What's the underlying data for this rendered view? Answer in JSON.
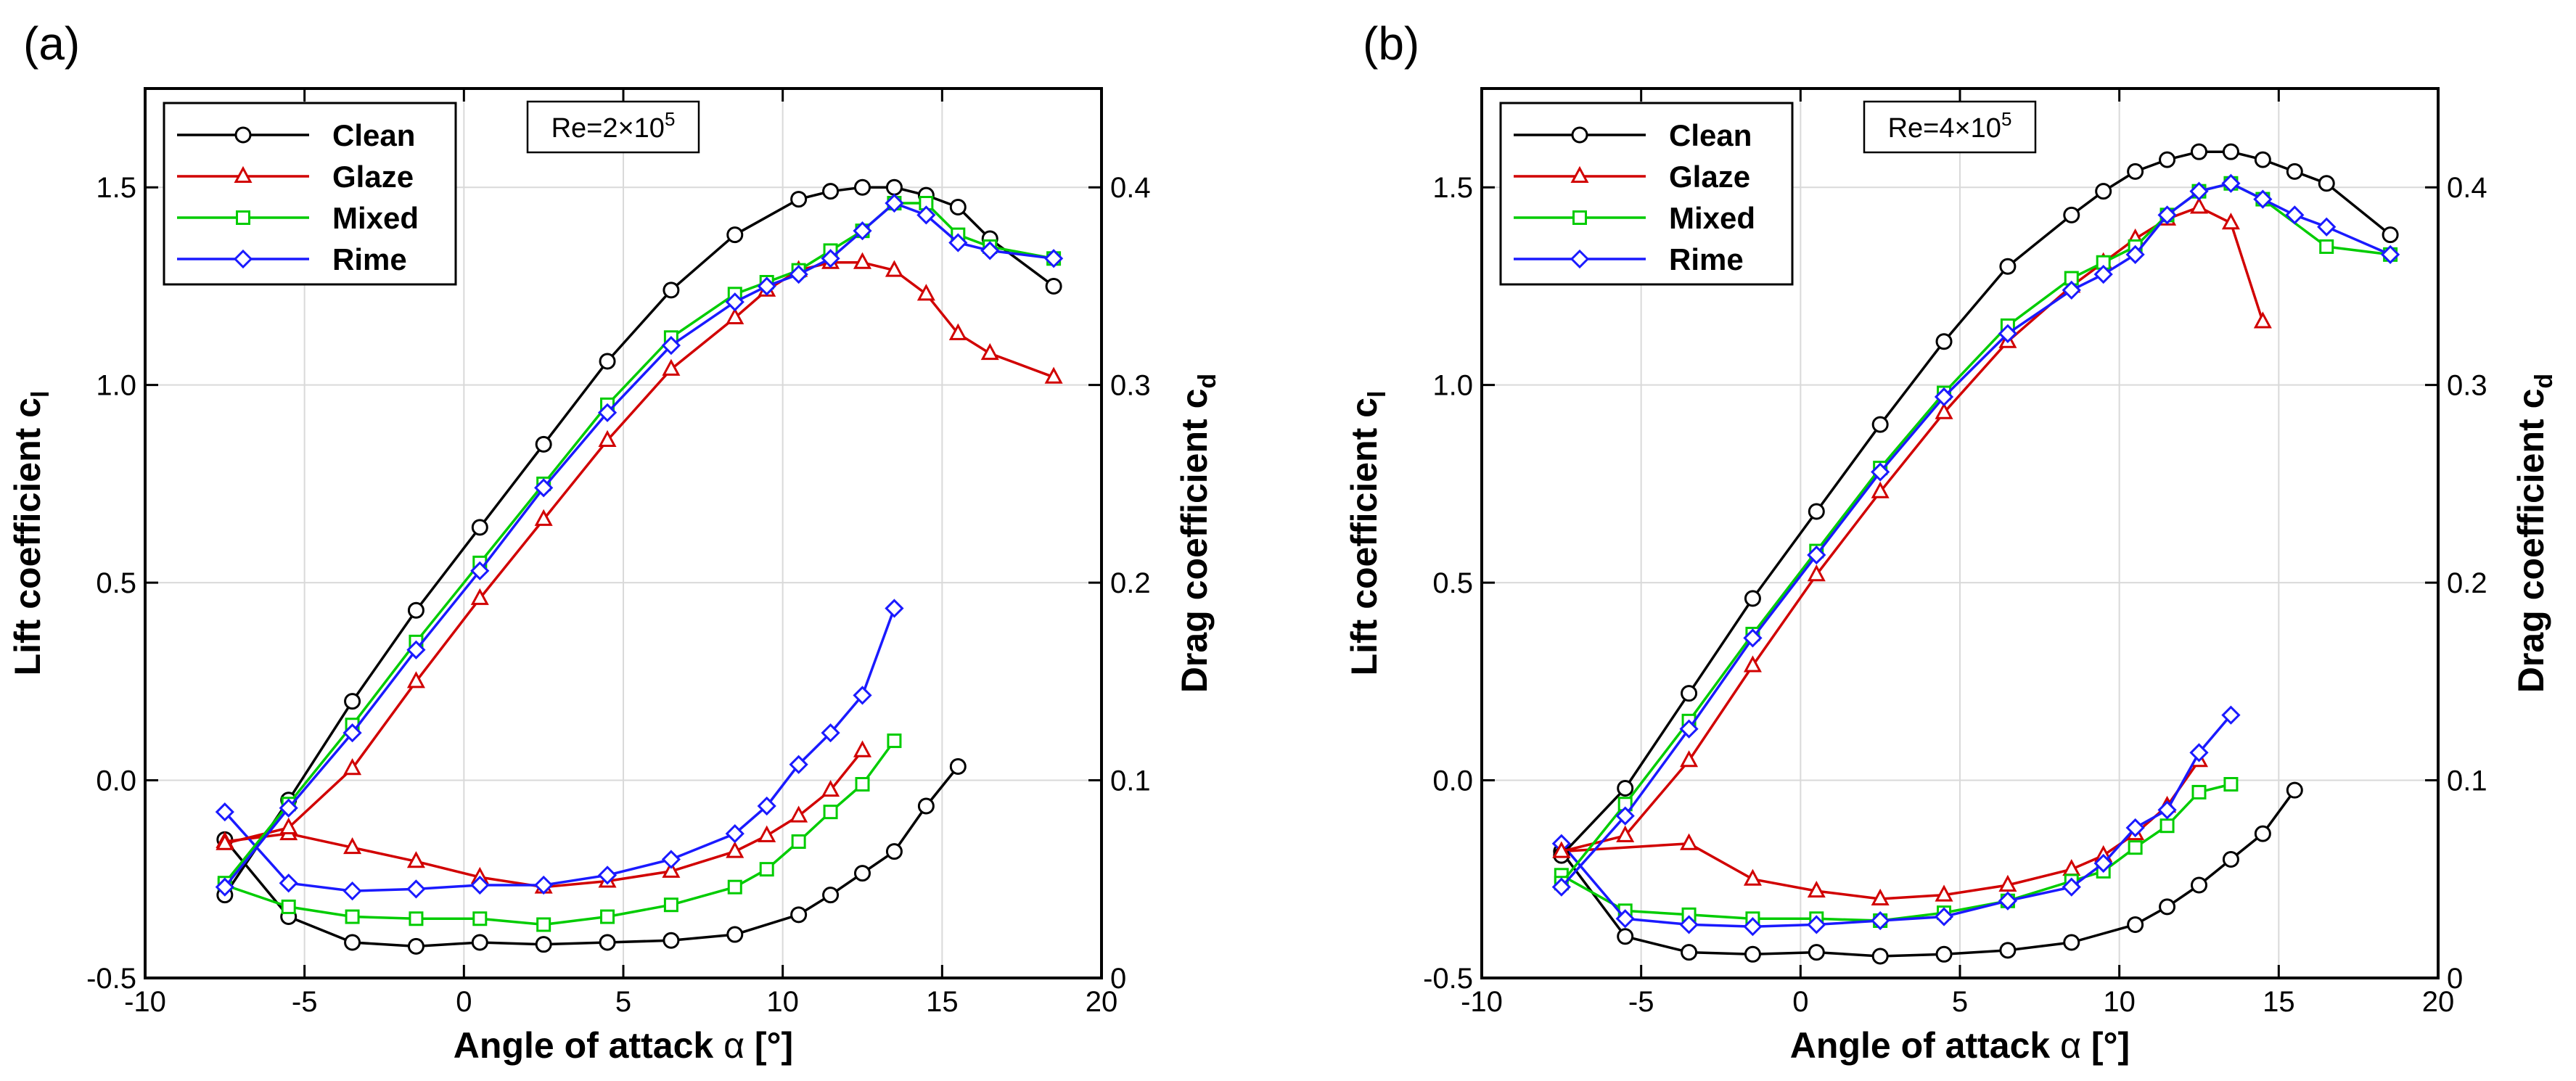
{
  "colors": {
    "Clean": "#000000",
    "Glaze": "#d10000",
    "Mixed": "#00cc00",
    "Rime": "#1a1aff"
  },
  "markers": {
    "Clean": "circle",
    "Glaze": "triangle",
    "Mixed": "square",
    "Rime": "diamond"
  },
  "chart_data": [
    {
      "panel_label": "(a)",
      "type": "line",
      "annotation": {
        "prefix": "Re=2",
        "times": "×",
        "base": "10",
        "exponent": "5"
      },
      "xlabel": {
        "main": "Angle of attack ",
        "symbol": "α",
        "unit": " [°]"
      },
      "ylabel_left": {
        "main": "Lift coefficient c",
        "sub": "l"
      },
      "ylabel_right": {
        "main": "Drag coefficient c",
        "sub": "d"
      },
      "xlim": [
        -10,
        20
      ],
      "ylim_left": [
        -0.5,
        1.75
      ],
      "ylim_right": [
        0,
        0.45
      ],
      "xticks": [
        "-10",
        "-5",
        "0",
        "5",
        "10",
        "15",
        "20"
      ],
      "yticks_left": [
        "-0.5",
        "0.0",
        "0.5",
        "1.0",
        "1.5"
      ],
      "yticks_right": [
        "0",
        "0.1",
        "0.2",
        "0.3",
        "0.4"
      ],
      "legend": [
        "Clean",
        "Glaze",
        "Mixed",
        "Rime"
      ],
      "lift": [
        {
          "name": "Clean",
          "x": [
            -7.5,
            -5.5,
            -3.5,
            -1.5,
            0.5,
            2.5,
            4.5,
            6.5,
            8.5,
            10.5,
            11.5,
            12.5,
            13.5,
            14.5,
            15.5,
            16.5,
            18.5
          ],
          "y": [
            -0.29,
            -0.05,
            0.2,
            0.43,
            0.64,
            0.85,
            1.06,
            1.24,
            1.38,
            1.47,
            1.49,
            1.5,
            1.5,
            1.48,
            1.45,
            1.37,
            1.25
          ]
        },
        {
          "name": "Glaze",
          "x": [
            -7.5,
            -5.5,
            -3.5,
            -1.5,
            0.5,
            2.5,
            4.5,
            6.5,
            8.5,
            9.5,
            10.5,
            11.5,
            12.5,
            13.5,
            14.5,
            15.5,
            16.5,
            18.5
          ],
          "y": [
            -0.16,
            -0.12,
            0.03,
            0.25,
            0.46,
            0.66,
            0.86,
            1.04,
            1.17,
            1.24,
            1.29,
            1.31,
            1.31,
            1.29,
            1.23,
            1.13,
            1.08,
            1.02
          ]
        },
        {
          "name": "Mixed",
          "x": [
            -7.5,
            -5.5,
            -3.5,
            -1.5,
            0.5,
            2.5,
            4.5,
            6.5,
            8.5,
            9.5,
            10.5,
            11.5,
            12.5,
            13.5,
            14.5,
            15.5,
            16.5,
            18.5
          ],
          "y": [
            -0.26,
            -0.06,
            0.14,
            0.35,
            0.55,
            0.75,
            0.95,
            1.12,
            1.23,
            1.26,
            1.29,
            1.34,
            1.39,
            1.46,
            1.46,
            1.38,
            1.35,
            1.32
          ]
        },
        {
          "name": "Rime",
          "x": [
            -7.5,
            -5.5,
            -3.5,
            -1.5,
            0.5,
            2.5,
            4.5,
            6.5,
            8.5,
            9.5,
            10.5,
            11.5,
            12.5,
            13.5,
            14.5,
            15.5,
            16.5,
            18.5
          ],
          "y": [
            -0.27,
            -0.07,
            0.12,
            0.33,
            0.53,
            0.74,
            0.93,
            1.1,
            1.21,
            1.25,
            1.28,
            1.32,
            1.39,
            1.46,
            1.43,
            1.36,
            1.34,
            1.32
          ]
        }
      ],
      "drag": [
        {
          "name": "Clean",
          "x": [
            -7.5,
            -5.5,
            -3.5,
            -1.5,
            0.5,
            2.5,
            4.5,
            6.5,
            8.5,
            10.5,
            11.5,
            12.5,
            13.5,
            14.5,
            15.5
          ],
          "y": [
            0.07,
            0.031,
            0.018,
            0.016,
            0.018,
            0.017,
            0.018,
            0.019,
            0.022,
            0.032,
            0.042,
            0.053,
            0.064,
            0.087,
            0.107
          ]
        },
        {
          "name": "Glaze",
          "x": [
            -7.5,
            -5.5,
            -3.5,
            -1.5,
            0.5,
            2.5,
            4.5,
            6.5,
            8.5,
            9.5,
            10.5,
            11.5,
            12.5
          ],
          "y": [
            0.069,
            0.073,
            0.066,
            0.059,
            0.051,
            0.046,
            0.049,
            0.054,
            0.064,
            0.072,
            0.082,
            0.095,
            0.115
          ]
        },
        {
          "name": "Mixed",
          "x": [
            -7.5,
            -5.5,
            -3.5,
            -1.5,
            0.5,
            2.5,
            4.5,
            6.5,
            8.5,
            9.5,
            10.5,
            11.5,
            12.5,
            13.5
          ],
          "y": [
            0.047,
            0.036,
            0.031,
            0.03,
            0.03,
            0.027,
            0.031,
            0.037,
            0.046,
            0.055,
            0.069,
            0.084,
            0.098,
            0.12
          ]
        },
        {
          "name": "Rime",
          "x": [
            -7.5,
            -5.5,
            -3.5,
            -1.5,
            0.5,
            2.5,
            4.5,
            6.5,
            8.5,
            9.5,
            10.5,
            11.5,
            12.5,
            13.5
          ],
          "y": [
            0.084,
            0.048,
            0.044,
            0.045,
            0.047,
            0.047,
            0.052,
            0.06,
            0.073,
            0.087,
            0.108,
            0.124,
            0.143,
            0.187
          ]
        }
      ]
    },
    {
      "panel_label": "(b)",
      "type": "line",
      "annotation": {
        "prefix": "Re=4",
        "times": "×",
        "base": "10",
        "exponent": "5"
      },
      "xlabel": {
        "main": "Angle of attack ",
        "symbol": "α",
        "unit": " [°]"
      },
      "ylabel_left": {
        "main": "Lift coefficient c",
        "sub": "l"
      },
      "ylabel_right": {
        "main": "Drag coefficient c",
        "sub": "d"
      },
      "xlim": [
        -10,
        20
      ],
      "ylim_left": [
        -0.5,
        1.75
      ],
      "ylim_right": [
        0,
        0.45
      ],
      "xticks": [
        "-10",
        "-5",
        "0",
        "5",
        "10",
        "15",
        "20"
      ],
      "yticks_left": [
        "-0.5",
        "0.0",
        "0.5",
        "1.0",
        "1.5"
      ],
      "yticks_right": [
        "0",
        "0.1",
        "0.2",
        "0.3",
        "0.4"
      ],
      "legend": [
        "Clean",
        "Glaze",
        "Mixed",
        "Rime"
      ],
      "lift": [
        {
          "name": "Clean",
          "x": [
            -7.5,
            -5.5,
            -3.5,
            -1.5,
            0.5,
            2.5,
            4.5,
            6.5,
            8.5,
            9.5,
            10.5,
            11.5,
            12.5,
            13.5,
            14.5,
            15.5,
            16.5,
            18.5
          ],
          "y": [
            -0.19,
            -0.02,
            0.22,
            0.46,
            0.68,
            0.9,
            1.11,
            1.3,
            1.43,
            1.49,
            1.54,
            1.57,
            1.59,
            1.59,
            1.57,
            1.54,
            1.51,
            1.38
          ]
        },
        {
          "name": "Glaze",
          "x": [
            -7.5,
            -5.5,
            -3.5,
            -1.5,
            0.5,
            2.5,
            4.5,
            6.5,
            8.5,
            9.5,
            10.5,
            11.5,
            12.5,
            13.5,
            14.5
          ],
          "y": [
            -0.18,
            -0.14,
            0.05,
            0.29,
            0.52,
            0.73,
            0.93,
            1.11,
            1.25,
            1.31,
            1.37,
            1.42,
            1.45,
            1.41,
            1.16
          ]
        },
        {
          "name": "Mixed",
          "x": [
            -7.5,
            -5.5,
            -3.5,
            -1.5,
            0.5,
            2.5,
            4.5,
            6.5,
            8.5,
            9.5,
            10.5,
            11.5,
            12.5,
            13.5,
            14.5,
            16.5,
            18.5
          ],
          "y": [
            -0.26,
            -0.06,
            0.15,
            0.37,
            0.58,
            0.79,
            0.98,
            1.15,
            1.27,
            1.31,
            1.35,
            1.43,
            1.49,
            1.51,
            1.47,
            1.35,
            1.33
          ]
        },
        {
          "name": "Rime",
          "x": [
            -7.5,
            -5.5,
            -3.5,
            -1.5,
            0.5,
            2.5,
            4.5,
            6.5,
            8.5,
            9.5,
            10.5,
            11.5,
            12.5,
            13.5,
            14.5,
            15.5,
            16.5,
            18.5
          ],
          "y": [
            -0.27,
            -0.09,
            0.13,
            0.36,
            0.57,
            0.78,
            0.97,
            1.13,
            1.24,
            1.28,
            1.33,
            1.43,
            1.49,
            1.51,
            1.47,
            1.43,
            1.4,
            1.33
          ]
        }
      ],
      "drag": [
        {
          "name": "Clean",
          "x": [
            -7.5,
            -5.5,
            -3.5,
            -1.5,
            0.5,
            2.5,
            4.5,
            6.5,
            8.5,
            10.5,
            11.5,
            12.5,
            13.5,
            14.5,
            15.5
          ],
          "y": [
            0.064,
            0.021,
            0.013,
            0.012,
            0.013,
            0.011,
            0.012,
            0.014,
            0.018,
            0.027,
            0.036,
            0.047,
            0.06,
            0.073,
            0.095
          ]
        },
        {
          "name": "Glaze",
          "x": [
            -7.5,
            -3.5,
            -1.5,
            0.5,
            2.5,
            4.5,
            6.5,
            8.5,
            9.5,
            10.5,
            11.5,
            12.5
          ],
          "y": [
            0.064,
            0.068,
            0.05,
            0.044,
            0.04,
            0.042,
            0.047,
            0.055,
            0.062,
            0.073,
            0.087,
            0.11
          ]
        },
        {
          "name": "Mixed",
          "x": [
            -7.5,
            -5.5,
            -3.5,
            -1.5,
            0.5,
            2.5,
            4.5,
            6.5,
            8.5,
            9.5,
            10.5,
            11.5,
            12.5,
            13.5
          ],
          "y": [
            0.052,
            0.034,
            0.032,
            0.03,
            0.03,
            0.029,
            0.033,
            0.039,
            0.049,
            0.054,
            0.066,
            0.077,
            0.094,
            0.098
          ]
        },
        {
          "name": "Rime",
          "x": [
            -7.5,
            -5.5,
            -3.5,
            -1.5,
            0.5,
            2.5,
            4.5,
            6.5,
            8.5,
            9.5,
            10.5,
            11.5,
            12.5,
            13.5
          ],
          "y": [
            0.068,
            0.03,
            0.027,
            0.026,
            0.027,
            0.029,
            0.031,
            0.039,
            0.046,
            0.058,
            0.076,
            0.085,
            0.114,
            0.133
          ]
        }
      ]
    }
  ]
}
